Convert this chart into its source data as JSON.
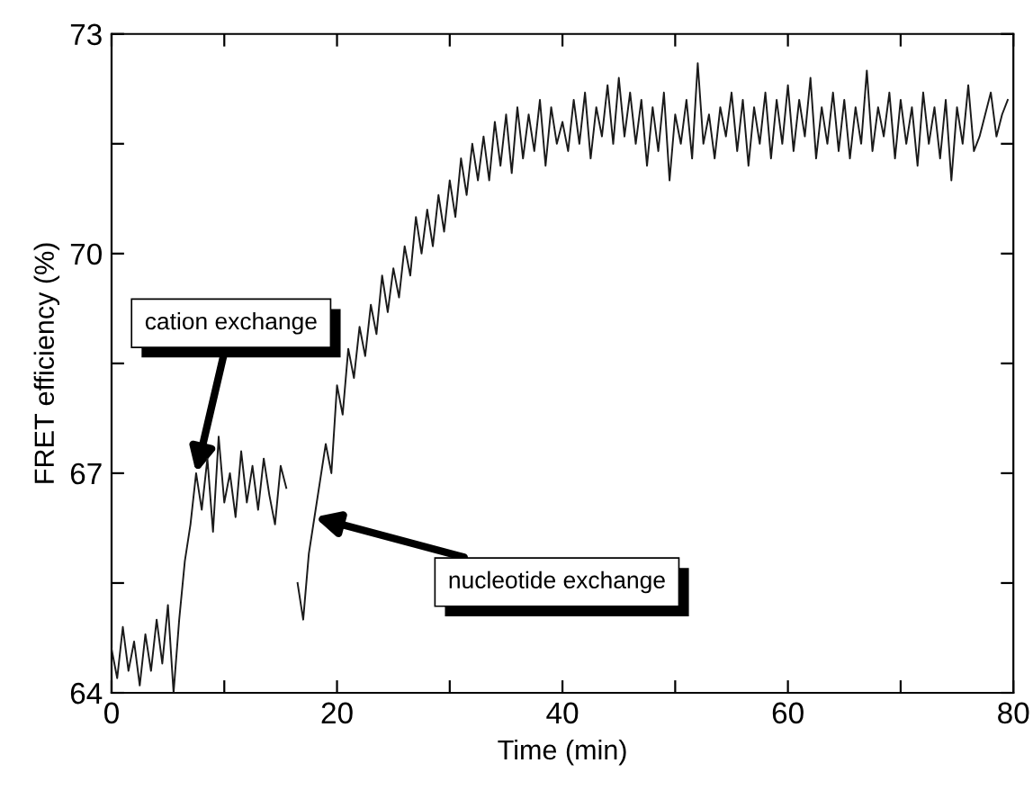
{
  "chart_data": {
    "type": "line",
    "xlabel": "Time (min)",
    "ylabel": "FRET efficiency (%)",
    "xlim": [
      0,
      80
    ],
    "ylim": [
      64,
      73
    ],
    "xticks": [
      0,
      {
        "value": 10,
        "label": null
      },
      20,
      {
        "value": 30,
        "label": null
      },
      40,
      {
        "value": 50,
        "label": null
      },
      60,
      {
        "value": 70,
        "label": null
      },
      80
    ],
    "yticks": [
      64,
      {
        "value": 65.5,
        "label": null
      },
      67,
      {
        "value": 68.5,
        "label": null
      },
      70,
      {
        "value": 71.5,
        "label": null
      },
      73
    ],
    "grid": false,
    "legend": false,
    "marker": "none",
    "line_style": "solid",
    "annotations": [
      {
        "text": "cation exchange",
        "x": 7.5,
        "y": 67.0
      },
      {
        "text": "nucleotide exchange",
        "x": 18,
        "y": 66.4
      }
    ],
    "series": [
      {
        "color": "#1a1a1a",
        "x": [
          0,
          0.5,
          1,
          1.5,
          2,
          2.5,
          3,
          3.5,
          4,
          4.5,
          5,
          5.5,
          6,
          6.5,
          7,
          7.5,
          8,
          8.5,
          9,
          9.5,
          10,
          10.5,
          11,
          11.5,
          12,
          12.5,
          13,
          13.5,
          14,
          14.5,
          15,
          15.5,
          16,
          16.5,
          17,
          17.5,
          18,
          18.5,
          19,
          19.5,
          20,
          20.5,
          21,
          21.5,
          22,
          22.5,
          23,
          23.5,
          24,
          24.5,
          25,
          25.5,
          26,
          26.5,
          27,
          27.5,
          28,
          28.5,
          29,
          29.5,
          30,
          30.5,
          31,
          31.5,
          32,
          32.5,
          33,
          33.5,
          34,
          34.5,
          35,
          35.5,
          36,
          36.5,
          37,
          37.5,
          38,
          38.5,
          39,
          39.5,
          40,
          40.5,
          41,
          41.5,
          42,
          42.5,
          43,
          43.5,
          44,
          44.5,
          45,
          45.5,
          46,
          46.5,
          47,
          47.5,
          48,
          48.5,
          49,
          49.5,
          50,
          50.5,
          51,
          51.5,
          52,
          52.5,
          53,
          53.5,
          54,
          54.5,
          55,
          55.5,
          56,
          56.5,
          57,
          57.5,
          58,
          58.5,
          59,
          59.5,
          60,
          60.5,
          61,
          61.5,
          62,
          62.5,
          63,
          63.5,
          64,
          64.5,
          65,
          65.5,
          66,
          66.5,
          67,
          67.5,
          68,
          68.5,
          69,
          69.5,
          70,
          70.5,
          71,
          71.5,
          72,
          72.5,
          73,
          73.5,
          74,
          74.5,
          75,
          75.5,
          76,
          76.5,
          77,
          77.5,
          78,
          78.5,
          79,
          79.5
        ],
        "values": [
          64.6,
          64.2,
          64.9,
          64.3,
          64.7,
          64.1,
          64.8,
          64.3,
          65.0,
          64.4,
          65.2,
          64.0,
          65.0,
          65.8,
          66.3,
          67.0,
          66.5,
          67.2,
          66.2,
          67.5,
          66.6,
          67.0,
          66.4,
          67.3,
          66.6,
          67.1,
          66.5,
          67.2,
          66.7,
          66.3,
          67.1,
          66.8,
          null,
          65.5,
          65.0,
          65.9,
          66.4,
          66.9,
          67.4,
          67.0,
          68.2,
          67.8,
          68.7,
          68.3,
          69.0,
          68.6,
          69.3,
          68.9,
          69.7,
          69.2,
          69.8,
          69.4,
          70.1,
          69.7,
          70.5,
          70.0,
          70.6,
          70.1,
          70.8,
          70.3,
          71.0,
          70.5,
          71.3,
          70.8,
          71.5,
          71.0,
          71.6,
          71.0,
          71.8,
          71.2,
          71.9,
          71.1,
          72.0,
          71.3,
          71.9,
          71.4,
          72.1,
          71.2,
          72.0,
          71.5,
          71.8,
          71.4,
          72.1,
          71.5,
          72.2,
          71.3,
          72.0,
          71.6,
          72.3,
          71.5,
          72.4,
          71.6,
          72.2,
          71.5,
          72.1,
          71.2,
          72.0,
          71.4,
          72.2,
          71.0,
          71.9,
          71.5,
          72.1,
          71.3,
          72.6,
          71.5,
          71.9,
          71.3,
          72.0,
          71.6,
          72.2,
          71.4,
          72.1,
          71.2,
          72.0,
          71.5,
          72.2,
          71.3,
          72.1,
          71.5,
          72.3,
          71.4,
          72.1,
          71.6,
          72.4,
          71.3,
          72.0,
          71.5,
          72.2,
          71.4,
          72.1,
          71.3,
          72.0,
          71.5,
          72.5,
          71.4,
          72.0,
          71.6,
          72.2,
          71.3,
          72.1,
          71.5,
          72.0,
          71.2,
          72.2,
          71.5,
          72.0,
          71.3,
          72.1,
          71.0,
          72.0,
          71.5,
          72.3,
          71.4,
          71.6,
          71.9,
          72.2,
          71.6,
          71.9,
          72.1
        ]
      }
    ]
  }
}
